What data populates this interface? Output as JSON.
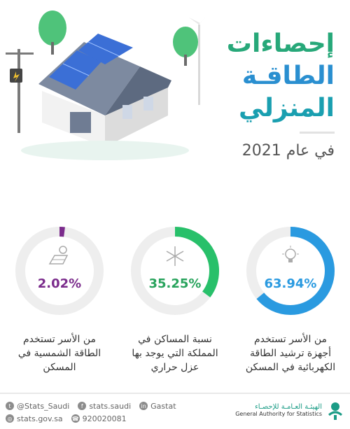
{
  "header": {
    "title_line1": "إحصاءات",
    "title_line2": "الطاقـة",
    "title_line3": "المنزلي",
    "subtitle": "في عام 2021"
  },
  "stats": [
    {
      "value": "63.94%",
      "percent": 63.94,
      "description": "من الأسر تستخدم أجهزة ترشيد الطاقة الكهربائية في المسكن",
      "color": "#2a9ae0",
      "icon": "lightbulb-icon"
    },
    {
      "value": "35.25%",
      "percent": 35.25,
      "description": "نسبة المساكن في المملكة التي يوجد بها عزل حراري",
      "color": "#28c06a",
      "icon": "snowflake-sun-icon"
    },
    {
      "value": "2.02%",
      "percent": 2.02,
      "description": "من الأسر تستخدم الطاقة الشمسية في المسكن",
      "color": "#7b2c8c",
      "icon": "solar-panel-icon"
    }
  ],
  "footer": {
    "twitter": "@Stats_Saudi",
    "facebook": "stats.saudi",
    "linkedin": "Gastat",
    "website": "stats.gov.sa",
    "phone": "920020081",
    "org_ar": "الهيئـة العـامـة للإحصـاء",
    "org_en": "General Authority for Statistics"
  }
}
